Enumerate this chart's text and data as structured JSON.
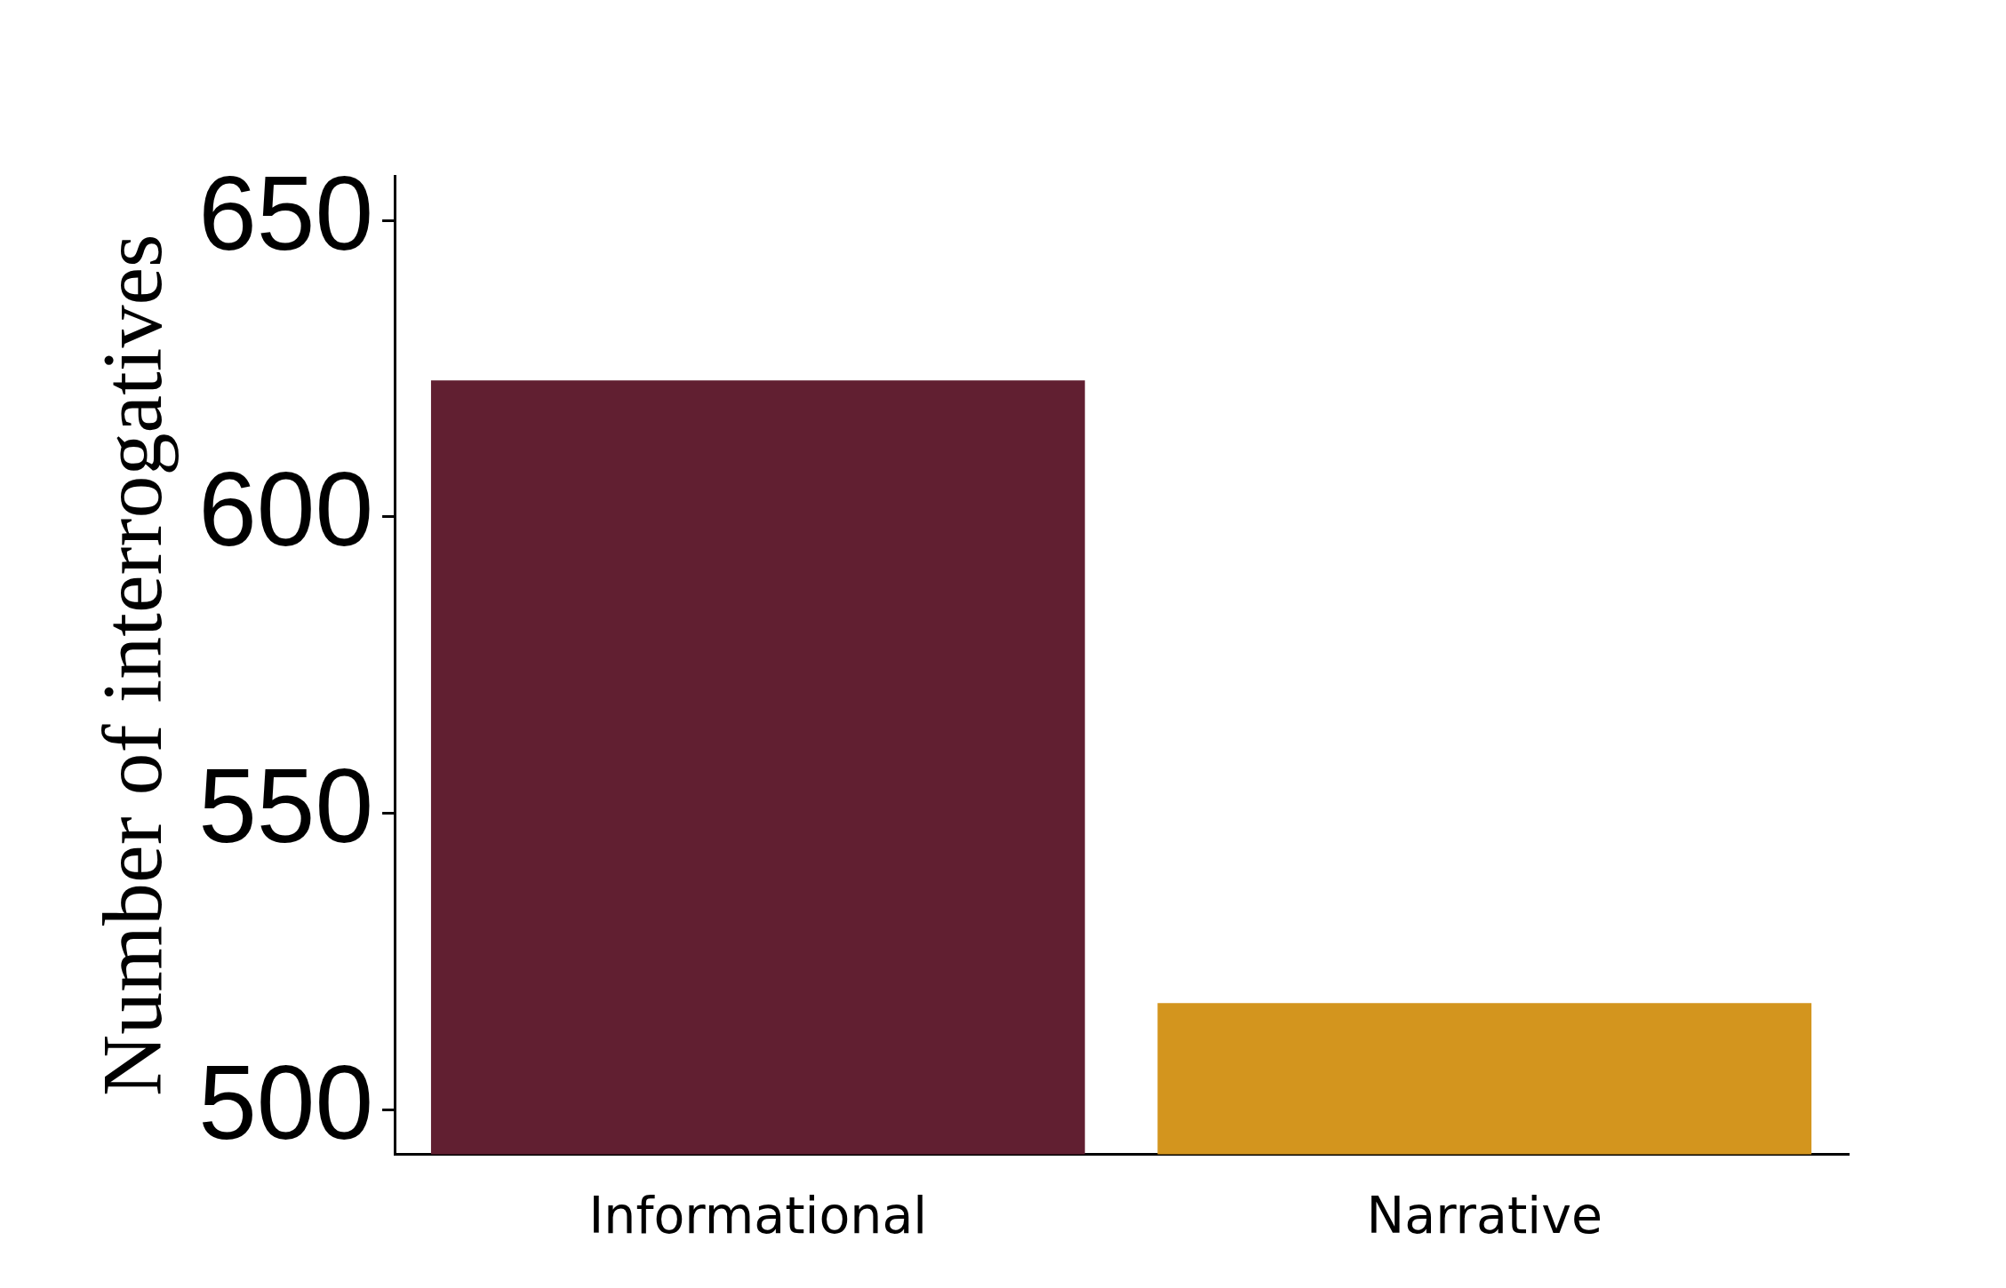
{
  "chart_data": {
    "type": "bar",
    "ylabel": "Number of interrogatives",
    "categories": [
      "Informational",
      "Narrative"
    ],
    "series": [
      {
        "colors": [
          "#611f31",
          "#d3951e"
        ],
        "values": [
          623,
          518
        ]
      }
    ],
    "ylim": [
      492.5,
      657.5
    ],
    "yticks": [
      500,
      550,
      600,
      650
    ],
    "grid": false,
    "legend": false
  }
}
